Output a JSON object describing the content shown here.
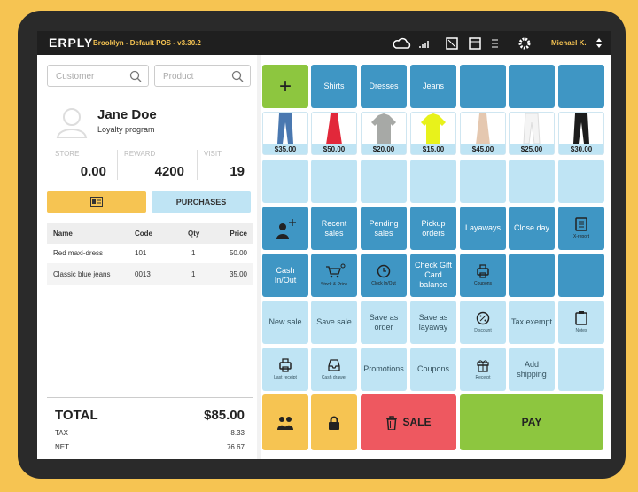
{
  "header": {
    "logo": "ERPLY",
    "location": "Brooklyn - Default POS - v3.30.2",
    "user": "Michael K."
  },
  "search": {
    "customer": "Customer",
    "product": "Product"
  },
  "customer": {
    "name": "Jane Doe",
    "program": "Loyalty program",
    "stats": [
      {
        "label": "STORE",
        "value": "0.00"
      },
      {
        "label": "REWARD",
        "value": "4200"
      },
      {
        "label": "VISIT",
        "value": "19"
      }
    ]
  },
  "buttons": {
    "purchases": "PURCHASES"
  },
  "cart": {
    "columns": [
      "Name",
      "Code",
      "Qty",
      "Price"
    ],
    "rows": [
      [
        "Red maxi-dress",
        "101",
        "1",
        "50.00"
      ],
      [
        "Classic blue jeans",
        "0013",
        "1",
        "35.00"
      ]
    ]
  },
  "totals": {
    "total_label": "TOTAL",
    "total": "$85.00",
    "tax_label": "TAX",
    "tax": "8.33",
    "net_label": "NET",
    "net": "76.67"
  },
  "categories": [
    "Shirts",
    "Dresses",
    "Jeans"
  ],
  "products": [
    "$35.00",
    "$50.00",
    "$20.00",
    "$15.00",
    "$45.00",
    "$25.00",
    "$30.00"
  ],
  "functions": [
    "Recent sales",
    "Pending sales",
    "Pickup orders",
    "Layaways",
    "Close day",
    "X-report",
    "Cash In/Out",
    "Stock & Price",
    "Clock In/Out",
    "Check Gift Card balance",
    "Coupons",
    "New sale",
    "Save sale",
    "Save as order",
    "Save as layaway",
    "Discount",
    "Tax exempt",
    "Notes",
    "Last receipt",
    "Cash drawer",
    "Promotions",
    "Coupons",
    "Receipt",
    "Add shipping"
  ],
  "checkout": {
    "sale": "SALE",
    "pay": "PAY"
  }
}
